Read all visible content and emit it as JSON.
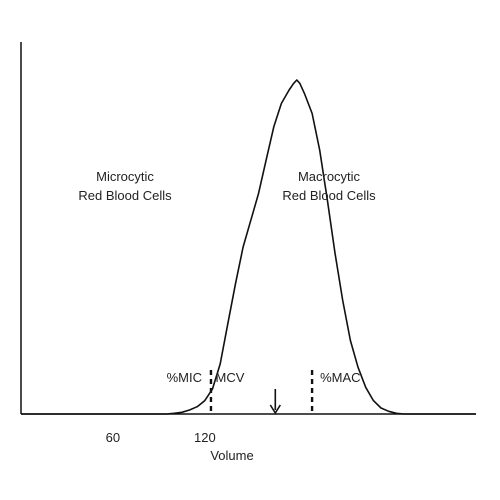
{
  "colors": {
    "ink": "#111111",
    "text": "#222222",
    "background": "#ffffff"
  },
  "chart_data": {
    "type": "line",
    "title": "",
    "xlabel": "Volume",
    "ylabel": "",
    "xlim": [
      0,
      297
    ],
    "ylim": [
      0,
      1
    ],
    "grid": false,
    "x_ticks": [
      {
        "value": 60,
        "label": "60"
      },
      {
        "value": 120,
        "label": "120"
      }
    ],
    "series": [
      {
        "values": [
          [
            0,
            0
          ],
          [
            95,
            0
          ],
          [
            100,
            0.002
          ],
          [
            105,
            0.005
          ],
          [
            110,
            0.012
          ],
          [
            115,
            0.022
          ],
          [
            120,
            0.04
          ],
          [
            125,
            0.075
          ],
          [
            130,
            0.15
          ],
          [
            135,
            0.27
          ],
          [
            140,
            0.39
          ],
          [
            145,
            0.5
          ],
          [
            150,
            0.58
          ],
          [
            155,
            0.66
          ],
          [
            160,
            0.76
          ],
          [
            165,
            0.86
          ],
          [
            170,
            0.93
          ],
          [
            175,
            0.97
          ],
          [
            178,
            0.99
          ],
          [
            180,
            1.0
          ],
          [
            182,
            0.99
          ],
          [
            185,
            0.96
          ],
          [
            190,
            0.9
          ],
          [
            195,
            0.79
          ],
          [
            200,
            0.64
          ],
          [
            205,
            0.48
          ],
          [
            210,
            0.34
          ],
          [
            215,
            0.22
          ],
          [
            220,
            0.14
          ],
          [
            225,
            0.08
          ],
          [
            230,
            0.04
          ],
          [
            235,
            0.018
          ],
          [
            240,
            0.008
          ],
          [
            245,
            0.002
          ],
          [
            250,
            0
          ],
          [
            297,
            0
          ]
        ]
      }
    ],
    "thresholds": [
      {
        "x": 124,
        "label": "%MIC"
      },
      {
        "x": 190,
        "label": "%MAC"
      }
    ],
    "annotations": {
      "left_region": [
        "Microcytic",
        "Red Blood Cells"
      ],
      "right_region": [
        "Macrocytic",
        "Red Blood Cells"
      ],
      "mean_label": "MCV",
      "mean_x": 166
    }
  }
}
